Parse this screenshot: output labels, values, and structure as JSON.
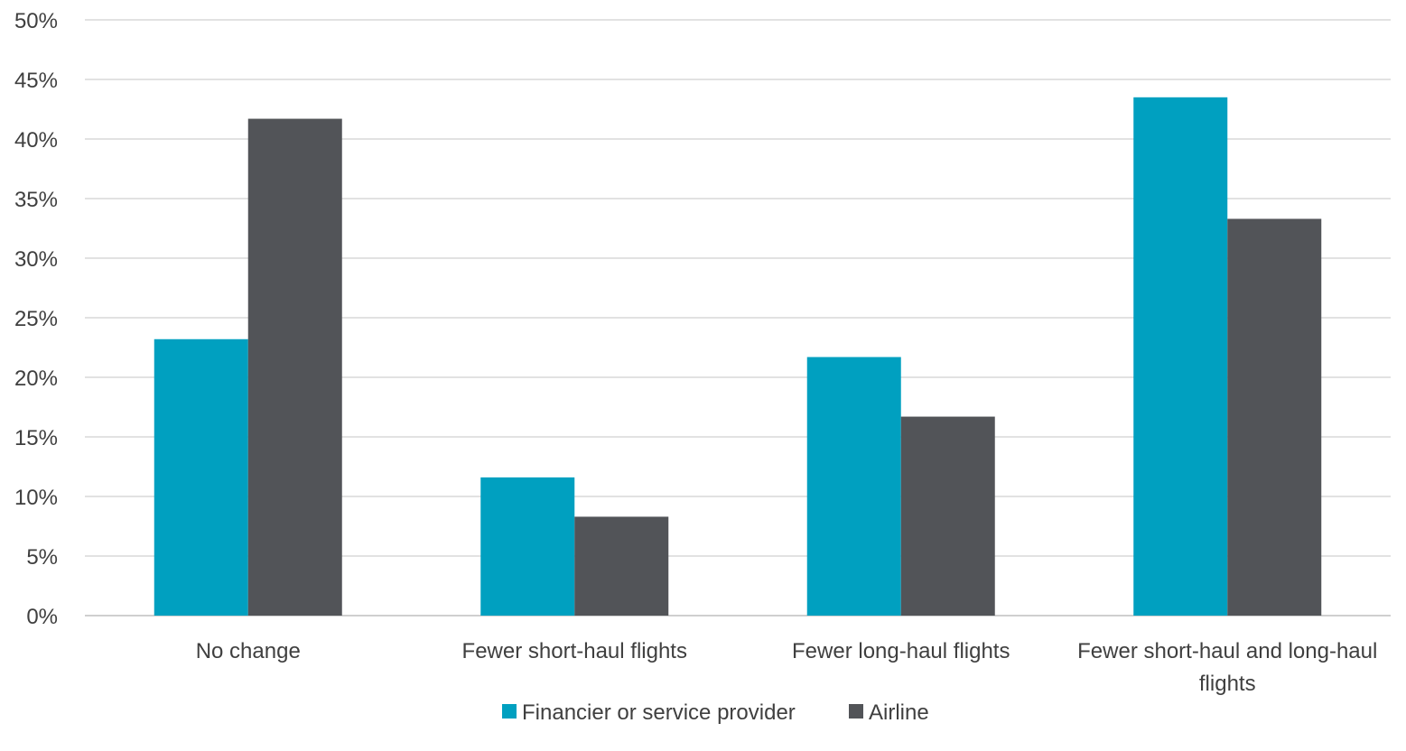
{
  "chart_data": {
    "type": "bar",
    "categories": [
      [
        "No change"
      ],
      [
        "Fewer short-haul flights"
      ],
      [
        "Fewer long-haul flights"
      ],
      [
        "Fewer short-haul and long-haul",
        "flights"
      ]
    ],
    "series": [
      {
        "name": "Financier or service provider",
        "values": [
          23.2,
          11.6,
          21.7,
          43.5
        ],
        "color": "#00a0c0"
      },
      {
        "name": "Airline",
        "values": [
          41.7,
          8.3,
          16.7,
          33.3
        ],
        "color": "#525458"
      }
    ],
    "ylim": [
      0,
      50
    ],
    "y_ticks": [
      0,
      5,
      10,
      15,
      20,
      25,
      30,
      35,
      40,
      45,
      50
    ],
    "y_tick_labels": [
      "0%",
      "5%",
      "10%",
      "15%",
      "20%",
      "25%",
      "30%",
      "35%",
      "40%",
      "45%",
      "50%"
    ],
    "grid": true,
    "gridline_color": "#d9d9d9",
    "legend_position": "bottom-center",
    "title": "",
    "xlabel": "",
    "ylabel": ""
  }
}
